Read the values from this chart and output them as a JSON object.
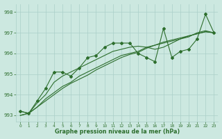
{
  "xlabel": "Graphe pression niveau de la mer (hPa)",
  "background_color": "#cce8e0",
  "grid_color": "#aacfc8",
  "line_color": "#2d6e2d",
  "ylim": [
    992.7,
    998.4
  ],
  "xlim": [
    -0.5,
    23.5
  ],
  "yticks": [
    993,
    994,
    995,
    996,
    997,
    998
  ],
  "xticks": [
    0,
    1,
    2,
    3,
    4,
    5,
    6,
    7,
    8,
    9,
    10,
    11,
    12,
    13,
    14,
    15,
    16,
    17,
    18,
    19,
    20,
    21,
    22,
    23
  ],
  "series_with_markers": [
    993.2,
    993.1,
    993.7,
    994.3,
    995.1,
    995.1,
    994.9,
    995.3,
    995.8,
    995.9,
    996.3,
    996.5,
    996.5,
    996.5,
    996.0,
    995.8,
    995.6,
    997.2,
    995.8,
    996.1,
    996.2,
    996.7,
    997.9,
    997.0
  ],
  "series_smooth": [
    [
      993.2,
      993.1,
      993.6,
      994.0,
      994.6,
      994.9,
      995.1,
      995.3,
      995.5,
      995.7,
      995.9,
      996.1,
      996.2,
      996.3,
      996.35,
      996.3,
      996.2,
      996.3,
      996.5,
      996.7,
      996.8,
      997.0,
      997.1,
      997.0
    ],
    [
      993.0,
      993.1,
      993.4,
      993.8,
      994.1,
      994.4,
      994.6,
      994.9,
      995.1,
      995.3,
      995.5,
      995.7,
      995.9,
      996.0,
      996.1,
      996.3,
      996.4,
      996.55,
      996.65,
      996.75,
      996.85,
      996.95,
      997.05,
      997.0
    ],
    [
      993.0,
      993.1,
      993.4,
      993.7,
      994.0,
      994.3,
      994.55,
      994.75,
      994.95,
      995.2,
      995.4,
      995.6,
      995.8,
      995.95,
      996.05,
      996.25,
      996.4,
      996.5,
      996.6,
      996.7,
      996.85,
      996.95,
      997.05,
      997.0
    ]
  ]
}
